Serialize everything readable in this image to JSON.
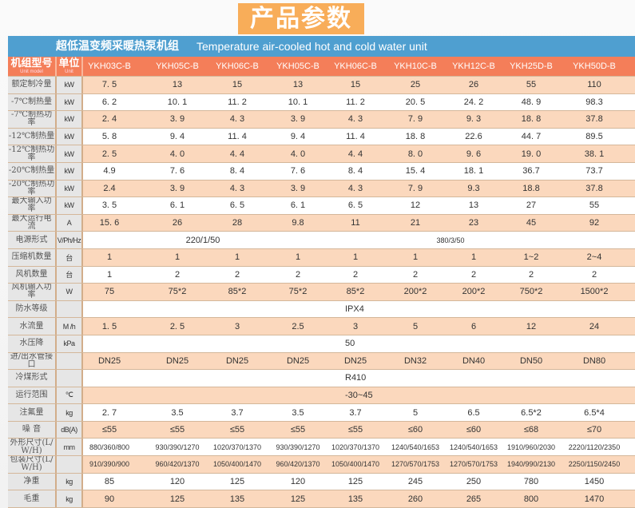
{
  "badge": "产品参数",
  "title": {
    "cn": "超低温变频采暖热泵机组",
    "en": "Temperature air-cooled hot and cold water unit"
  },
  "header": {
    "model_cn": "机组型号",
    "model_en": "Unit model",
    "unit_cn": "单位",
    "unit_en": "Unit",
    "models": [
      "YKH03C-B",
      "YKH05C-B",
      "YKH06C-B",
      "YKH05C-B",
      "YKH06C-B",
      "YKH10C-B",
      "YKH12C-B",
      "YKH25D-B",
      "YKH50D-B"
    ]
  },
  "colors": {
    "title_bar": "#4f9fd0",
    "header_row": "#f47e59",
    "badge": "#f8ad59",
    "stripe": "#fbd8bd"
  },
  "rows": [
    {
      "label": "额定制冷量",
      "unit": "kW",
      "values": [
        "7. 5",
        "13",
        "15",
        "13",
        "15",
        "25",
        "26",
        "55",
        "110"
      ]
    },
    {
      "label": "-7℃制热量",
      "unit": "kW",
      "values": [
        "6. 2",
        "10. 1",
        "11. 2",
        "10. 1",
        "11. 2",
        "20. 5",
        "24. 2",
        "48. 9",
        "98.3"
      ]
    },
    {
      "label": "-7℃制热功率",
      "unit": "kW",
      "values": [
        "2. 4",
        "3. 9",
        "4. 3",
        "3. 9",
        "4. 3",
        "7. 9",
        "9. 3",
        "18. 8",
        "37.8"
      ]
    },
    {
      "label": "-12℃制热量",
      "unit": "kW",
      "values": [
        "5. 8",
        "9. 4",
        "11. 4",
        "9. 4",
        "11. 4",
        "18. 8",
        "22.6",
        "44. 7",
        "89.5"
      ]
    },
    {
      "label": "-12℃制热功率",
      "unit": "kW",
      "values": [
        "2. 5",
        "4. 0",
        "4. 4",
        "4. 0",
        "4. 4",
        "8. 0",
        "9. 6",
        "19. 0",
        "38. 1"
      ]
    },
    {
      "label": "-20℃制热量",
      "unit": "kW",
      "values": [
        "4.9",
        "7. 6",
        "8. 4",
        "7. 6",
        "8. 4",
        "15. 4",
        "18. 1",
        "36.7",
        "73.7"
      ]
    },
    {
      "label": "-20℃制热功率",
      "unit": "kW",
      "values": [
        "2.4",
        "3. 9",
        "4. 3",
        "3. 9",
        "4. 3",
        "7. 9",
        "9.3",
        "18.8",
        "37.8"
      ]
    },
    {
      "label": "最大输入功率",
      "unit": "kW",
      "values": [
        "3. 5",
        "6. 1",
        "6. 5",
        "6. 1",
        "6. 5",
        "12",
        "13",
        "27",
        "55"
      ]
    },
    {
      "label": "最大运行电流",
      "unit": "A",
      "values": [
        "15. 6",
        "26",
        "28",
        "9.8",
        "11",
        "21",
        "23",
        "45",
        "92"
      ]
    },
    {
      "label": "电源形式",
      "unit": "V/Ph/Hz",
      "groups": [
        "220/1/50",
        "380/3/50"
      ]
    },
    {
      "label": "压缩机数量",
      "unit": "台",
      "values": [
        "1",
        "1",
        "1",
        "1",
        "1",
        "1",
        "1",
        "1~2",
        "2~4"
      ]
    },
    {
      "label": "风机数量",
      "unit": "台",
      "values": [
        "1",
        "2",
        "2",
        "2",
        "2",
        "2",
        "2",
        "2",
        "2"
      ]
    },
    {
      "label": "风机输入功率",
      "unit": "W",
      "values": [
        "75",
        "75*2",
        "85*2",
        "75*2",
        "85*2",
        "200*2",
        "200*2",
        "750*2",
        "1500*2"
      ]
    },
    {
      "label": "防水等级",
      "unit": "",
      "span": "IPX4"
    },
    {
      "label": "水流量",
      "unit": "M /h",
      "values": [
        "1. 5",
        "2. 5",
        "3",
        "2.5",
        "3",
        "5",
        "6",
        "12",
        "24"
      ]
    },
    {
      "label": "水压降",
      "unit": "kPa",
      "span": "50"
    },
    {
      "label": "进/出水管接口",
      "unit": "",
      "values": [
        "DN25",
        "DN25",
        "DN25",
        "DN25",
        "DN25",
        "DN32",
        "DN40",
        "DN50",
        "DN80"
      ]
    },
    {
      "label": "冷煤形式",
      "unit": "",
      "span": "R410"
    },
    {
      "label": "运行范围",
      "unit": "℃",
      "span": "-30~45"
    },
    {
      "label": "注氟量",
      "unit": "kg",
      "values": [
        "2. 7",
        "3.5",
        "3.7",
        "3.5",
        "3.7",
        "5",
        "6.5",
        "6.5*2",
        "6.5*4"
      ]
    },
    {
      "label": "噪 音",
      "unit": "dB(A)",
      "values": [
        "≤55",
        "≤55",
        "≤55",
        "≤55",
        "≤55",
        "≤60",
        "≤60",
        "≤68",
        "≤70"
      ]
    },
    {
      "label": "外形尺寸(L/W/H)",
      "unit": "mm",
      "small": true,
      "values": [
        "880/360/800",
        "930/390/1270",
        "1020/370/1370",
        "930/390/1270",
        "1020/370/1370",
        "1240/540/1653",
        "1240/540/1653",
        "1910/960/2030",
        "2220/1120/2350"
      ]
    },
    {
      "label": "包装尺寸(L/W/H)",
      "unit": "",
      "small": true,
      "values": [
        "910/390/900",
        "960/420/1370",
        "1050/400/1470",
        "960/420/1370",
        "1050/400/1470",
        "1270/570/1753",
        "1270/570/1753",
        "1940/990/2130",
        "2250/1150/2450"
      ]
    },
    {
      "label": "净重",
      "unit": "kg",
      "values": [
        "85",
        "120",
        "125",
        "120",
        "125",
        "245",
        "250",
        "780",
        "1450"
      ]
    },
    {
      "label": "毛重",
      "unit": "kg",
      "values": [
        "90",
        "125",
        "135",
        "125",
        "135",
        "260",
        "265",
        "800",
        "1470"
      ]
    }
  ]
}
